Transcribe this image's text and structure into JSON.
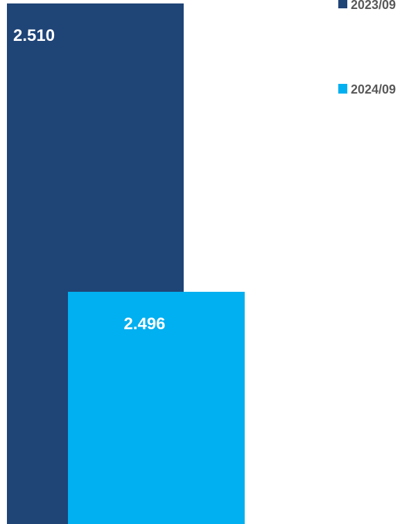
{
  "chart_data": {
    "type": "bar",
    "series": [
      {
        "name": "2023/09",
        "values": [
          2.51
        ],
        "color": "#1f4476"
      },
      {
        "name": "2024/09",
        "values": [
          2.496
        ],
        "color": "#00b0f0"
      }
    ],
    "data_labels": [
      "2.510",
      "2.496"
    ],
    "legend_position": "top-right",
    "grid": false
  }
}
